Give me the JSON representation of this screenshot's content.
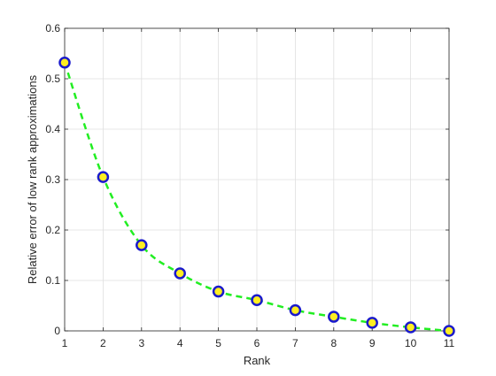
{
  "chart_data": {
    "type": "line",
    "xlabel": "Rank",
    "ylabel": "Relative error of low rank approximations",
    "xlim": [
      1,
      11
    ],
    "ylim": [
      0,
      0.6
    ],
    "grid": true,
    "x_ticks": [
      "1",
      "2",
      "3",
      "4",
      "5",
      "6",
      "7",
      "8",
      "9",
      "10",
      "11"
    ],
    "y_ticks": [
      "0",
      "0.1",
      "0.2",
      "0.3",
      "0.4",
      "0.5",
      "0.6"
    ],
    "series": [
      {
        "x": [
          1,
          2,
          3,
          4,
          5,
          6,
          7,
          8,
          9,
          10,
          11
        ],
        "values": [
          0.532,
          0.305,
          0.17,
          0.114,
          0.078,
          0.061,
          0.041,
          0.028,
          0.016,
          0.007,
          0.0
        ],
        "line_color": "#22ee22",
        "line_style": "dashed",
        "marker": "circle",
        "marker_face": "#ffee22",
        "marker_edge": "#1a1acc"
      }
    ]
  }
}
